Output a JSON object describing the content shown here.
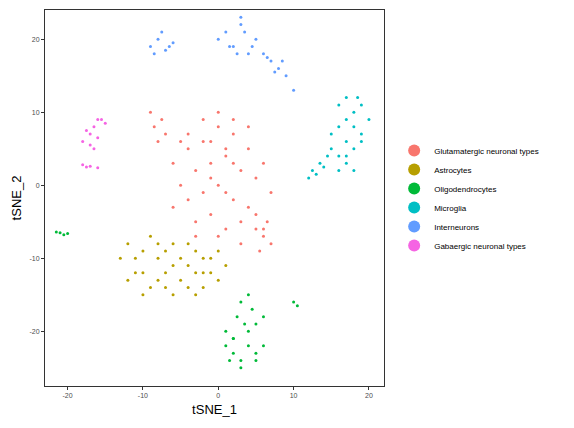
{
  "chart_data": {
    "type": "scatter",
    "x_label": "tSNE_1",
    "y_label": "tSNE_2",
    "xlim": [
      -23,
      22
    ],
    "xticks": [
      -20,
      -10,
      0,
      10,
      20
    ],
    "ylim": [
      -27.5,
      24
    ],
    "yticks": [
      -20,
      -10,
      0,
      10,
      20
    ],
    "grid": false,
    "legend": "right",
    "marker": "circle",
    "series": [
      {
        "name": "Glutamatergic neuronal types",
        "color": "#F8766D",
        "x": [
          -6,
          -4,
          -2,
          0,
          2,
          4,
          6,
          -5,
          -3,
          -1,
          1,
          3,
          5,
          7,
          -6,
          -4,
          -2,
          0,
          2,
          4,
          -3,
          -1,
          1,
          3,
          5,
          -2,
          0,
          2,
          -4,
          -1,
          1,
          4,
          -5,
          -3,
          0,
          3,
          6,
          -8.5,
          -7.5,
          -8,
          -7,
          -9,
          5,
          6,
          7,
          5.5,
          6.5,
          -1,
          1,
          2
        ],
        "values": [
          3,
          5,
          6,
          8,
          7,
          5,
          3,
          0,
          2,
          3,
          4,
          2,
          1,
          -1,
          -3,
          -2,
          -1,
          0,
          -2,
          -3,
          -5,
          -4,
          -6,
          -5,
          -4,
          9,
          10,
          9,
          7,
          6,
          5,
          8,
          6,
          -7,
          -7,
          -8,
          -6,
          8,
          9,
          6,
          7,
          10,
          -6,
          -7,
          -8,
          -9,
          -5,
          1,
          -1,
          3
        ]
      },
      {
        "name": "Astrocytes",
        "color": "#B79F00",
        "x": [
          -13,
          -12,
          -11,
          -10,
          -9,
          -8,
          -7,
          -6,
          -5,
          -4,
          -3,
          -2,
          -1,
          0,
          1,
          -12,
          -10,
          -8,
          -6,
          -4,
          -2,
          0,
          -11,
          -9,
          -7,
          -5,
          -3,
          -1,
          -10,
          -8,
          -6,
          -4,
          -2,
          -7,
          -3
        ],
        "values": [
          -10,
          -8,
          -12,
          -9,
          -14,
          -10,
          -12,
          -8,
          -13,
          -11,
          -9,
          -12,
          -10,
          -13,
          -11,
          -13,
          -15,
          -8,
          -15,
          -14,
          -14,
          -9,
          -10,
          -7,
          -9,
          -10,
          -15,
          -12,
          -12,
          -13,
          -11,
          -8,
          -10,
          -14,
          -12
        ]
      },
      {
        "name": "Oligodendrocytes",
        "color": "#00BA38",
        "x": [
          1,
          2,
          3,
          4,
          5,
          2,
          3,
          4,
          5,
          6,
          1.5,
          3.5,
          4.5,
          2.5,
          3,
          4,
          5,
          1,
          2,
          6,
          -21,
          -20.5,
          -21.5,
          -20,
          10,
          10.5
        ],
        "values": [
          -22,
          -23,
          -24,
          -22,
          -23,
          -21,
          -25,
          -20,
          -24,
          -22,
          -24,
          -19,
          -17,
          -18,
          -16,
          -15,
          -19,
          -20,
          -21,
          -18,
          -6.5,
          -6.8,
          -6.4,
          -6.6,
          -16,
          -16.5
        ]
      },
      {
        "name": "Microglia",
        "color": "#00BFC4",
        "x": [
          16,
          17,
          18,
          19,
          20,
          17,
          18,
          19,
          16,
          17,
          15,
          16,
          17,
          18,
          15,
          16,
          17,
          18,
          19,
          12.5,
          13,
          13.5,
          14,
          14.5,
          12,
          18.5
        ],
        "values": [
          11,
          12,
          10,
          11,
          9,
          9,
          8,
          7,
          8,
          6,
          5,
          4,
          3,
          5,
          7,
          2,
          4,
          2,
          6,
          2,
          1.5,
          3,
          2.5,
          4,
          1,
          12
        ]
      },
      {
        "name": "Interneurons",
        "color": "#619CFF",
        "x": [
          -9,
          -8,
          -7,
          -6,
          -8.5,
          -7.5,
          -6.5,
          0,
          1,
          2,
          3,
          4,
          5,
          1.5,
          2.5,
          3.5,
          4.5,
          6,
          7,
          8,
          9,
          6.5,
          7.5,
          8.5,
          10,
          3
        ],
        "values": [
          19,
          20,
          18.5,
          19.5,
          18,
          21,
          19,
          20,
          21,
          19,
          22,
          18,
          20,
          19,
          18,
          21,
          19,
          18,
          17,
          16,
          15,
          17.5,
          15.5,
          17,
          13,
          23
        ]
      },
      {
        "name": "Gabaergic neuronal types",
        "color": "#F564E3",
        "x": [
          -16,
          -15,
          -16.5,
          -15.5,
          -17,
          -16,
          -17.5,
          -18,
          -17,
          -16.5,
          -17.5,
          -18,
          -17,
          -16
        ],
        "values": [
          9,
          8.5,
          8,
          9,
          7,
          6.5,
          7.5,
          6,
          5.5,
          5,
          2.5,
          2.8,
          2.6,
          2.4
        ]
      }
    ]
  }
}
